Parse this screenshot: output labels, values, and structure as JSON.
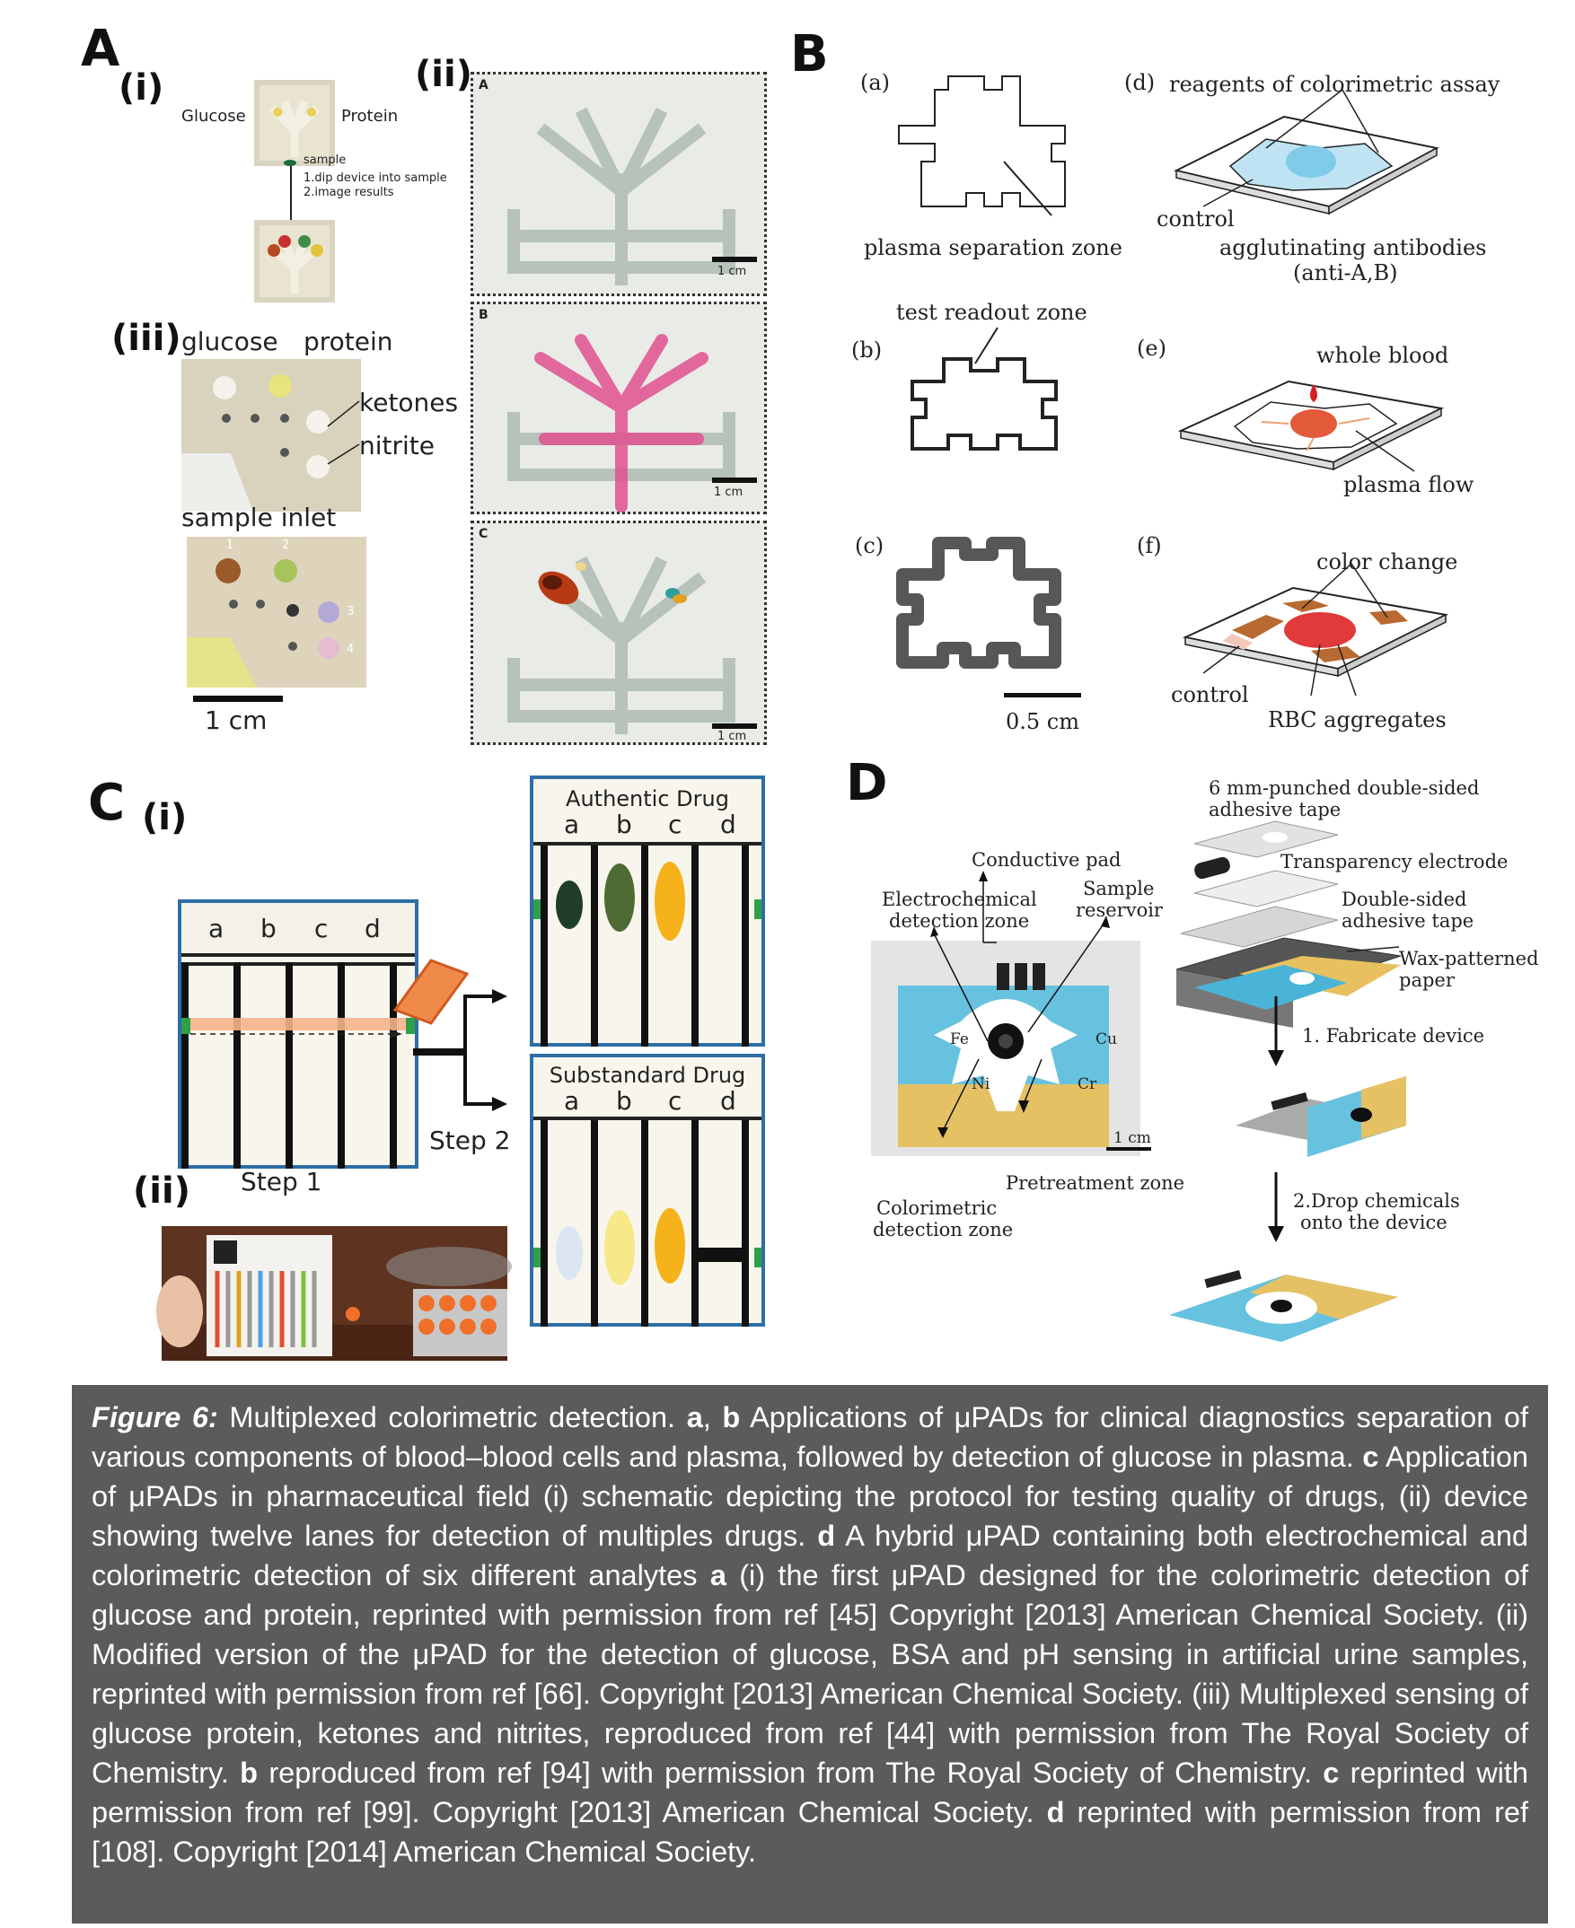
{
  "panels": {
    "A": {
      "letter": "A",
      "i": {
        "tag": "(i)",
        "glucose": "Glucose",
        "protein": "Protein",
        "sample": "sample",
        "step1": "1.dip device into sample",
        "step2": "2.image results"
      },
      "ii": {
        "tag": "(ii)",
        "sub_a": "A",
        "sub_b": "B",
        "sub_c": "C",
        "scale": "1 cm"
      },
      "iii": {
        "tag": "(iii)",
        "glucose": "glucose",
        "protein": "protein",
        "ketones": "ketones",
        "nitrite": "nitrite",
        "sample_inlet": "sample inlet",
        "scale": "1 cm",
        "spot1": "1",
        "spot2": "2",
        "spot3": "3",
        "spot4": "4"
      }
    },
    "B": {
      "letter": "B",
      "a": "(a)",
      "b": "(b)",
      "c": "(c)",
      "d": "(d)",
      "e": "(e)",
      "f": "(f)",
      "plasma_sep": "plasma separation zone",
      "reagents": "reagents of colorimetric assay",
      "control": "control",
      "agglutinating": "agglutinating antibodies",
      "anti": "(anti-A,B)",
      "test_readout": "test readout zone",
      "whole_blood": "whole blood",
      "plasma_flow": "plasma flow",
      "color_change": "color change",
      "control2": "control",
      "rbc": "RBC aggregates",
      "scale": "0.5 cm"
    },
    "C": {
      "letter": "C",
      "i_tag": "(i)",
      "ii_tag": "(ii)",
      "lanes": [
        "a",
        "b",
        "c",
        "d"
      ],
      "step1": "Step 1",
      "step2": "Step 2",
      "authentic": "Authentic Drug",
      "substandard": "Substandard Drug"
    },
    "D": {
      "letter": "D",
      "punched": "6 mm-punched double-sided",
      "adhesive": "adhesive tape",
      "conductive": "Conductive pad",
      "transparency": "Transparency electrode",
      "electrochem": "Electrochemical",
      "detection_zone": "detection zone",
      "sample": "Sample",
      "reservoir": "reservoir",
      "double_sided": "Double-sided",
      "adhesive2": "adhesive tape",
      "wax": "Wax-patterned",
      "paper": "paper",
      "fabricate": "1. Fabricate device",
      "fe": "Fe",
      "cu": "Cu",
      "ni": "Ni",
      "cr": "Cr",
      "scale": "1 cm",
      "pretreatment": "Pretreatment zone",
      "colorimetric": "Colorimetric",
      "detection_zone2": "detection zone",
      "drop1": "2.Drop chemicals",
      "drop2": "onto the device"
    }
  },
  "caption": {
    "label": "Figure 6:",
    "s1": " Multiplexed colorimetric detection. ",
    "a": "a",
    "comma": ", ",
    "b": "b",
    "s2": " Applications of μPADs for clinical diagnostics separation of various components of blood–blood cells and plasma, followed by detection of glucose in plasma. ",
    "c": "c",
    "s3": " Application of μPADs in pharmaceutical field (i) schematic depicting the protocol for testing quality of drugs, (ii) device showing twelve lanes for detection of multiples drugs. ",
    "d": "d",
    "s4": " A hybrid μPAD containing both electrochemical and colorimetric detection of six different analytes ",
    "a2": "a",
    "s5": " (i) the first μPAD designed for the colorimetric detection of glucose and protein, reprinted with permission from ref [45] Copyright [2013] American Chemical Society. (ii) Modified version of the μPAD for the detection of glucose, BSA and pH sensing in artificial urine samples, reprinted with permission from ref [66]. Copyright [2013] American Chemical Society. (iii) Multiplexed sensing of glucose protein, ketones and nitrites, reproduced from ref [44] with permission from The Royal Society of Chemistry. ",
    "b2": "b",
    "s6": " reproduced from ref [94] with permission from The Royal Society of Chemistry. ",
    "c2": "c",
    "s7": " reprinted with permission from ref [99]. Copyright [2013] American Chemical Society. ",
    "d2": "d",
    "s8": " reprinted with permission from ref [108]. Copyright [2014] American Chemical Society."
  },
  "colors": {
    "caption_bg": "#5b5b5b",
    "panel_blue": "#2e6ea6",
    "pink": "#e0508f",
    "orange": "#f0832a",
    "dark_green": "#1f3d28",
    "olive": "#4e6b35",
    "amber": "#f6b21a"
  }
}
